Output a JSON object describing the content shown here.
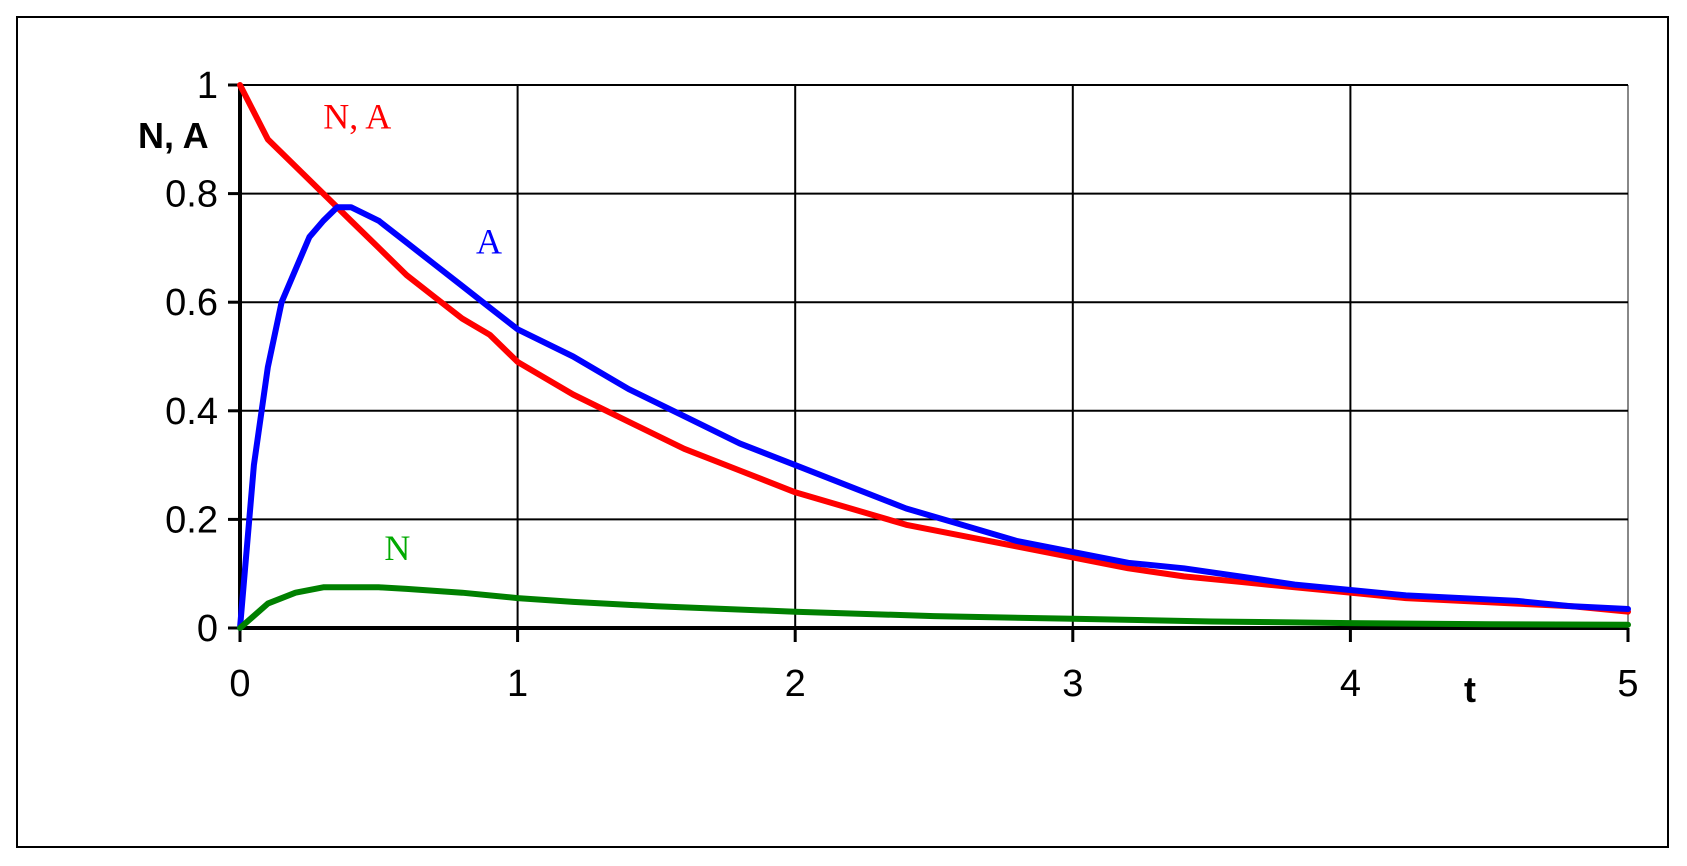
{
  "chart_data": {
    "type": "line",
    "ylabel": "N, A",
    "xlabel": "t",
    "xlim": [
      0,
      5
    ],
    "ylim": [
      0,
      1
    ],
    "x_ticks": [
      "0",
      "1",
      "2",
      "3",
      "4",
      "5"
    ],
    "y_ticks": [
      "0",
      "0.2",
      "0.4",
      "0.6",
      "0.8",
      "1"
    ],
    "grid": true,
    "series": [
      {
        "name": "N, A",
        "color": "#ff0000",
        "x": [
          0,
          0.1,
          0.2,
          0.3,
          0.4,
          0.5,
          0.6,
          0.7,
          0.8,
          0.9,
          1.0,
          1.2,
          1.4,
          1.6,
          1.8,
          2.0,
          2.2,
          2.4,
          2.6,
          2.8,
          3.0,
          3.2,
          3.4,
          3.6,
          3.8,
          4.0,
          4.2,
          4.4,
          4.6,
          4.8,
          5.0
        ],
        "y": [
          1.0,
          0.9,
          0.85,
          0.8,
          0.75,
          0.7,
          0.65,
          0.61,
          0.57,
          0.54,
          0.49,
          0.43,
          0.38,
          0.33,
          0.29,
          0.25,
          0.22,
          0.19,
          0.17,
          0.15,
          0.13,
          0.11,
          0.095,
          0.085,
          0.075,
          0.065,
          0.055,
          0.05,
          0.045,
          0.04,
          0.03
        ]
      },
      {
        "name": "A",
        "color": "#0000ff",
        "x": [
          0,
          0.05,
          0.1,
          0.15,
          0.2,
          0.25,
          0.3,
          0.35,
          0.4,
          0.5,
          0.6,
          0.7,
          0.8,
          0.9,
          1.0,
          1.2,
          1.4,
          1.6,
          1.8,
          2.0,
          2.2,
          2.4,
          2.6,
          2.8,
          3.0,
          3.2,
          3.4,
          3.6,
          3.8,
          4.0,
          4.2,
          4.4,
          4.6,
          4.8,
          5.0
        ],
        "y": [
          0.0,
          0.3,
          0.48,
          0.6,
          0.66,
          0.72,
          0.75,
          0.775,
          0.775,
          0.75,
          0.71,
          0.67,
          0.63,
          0.59,
          0.55,
          0.5,
          0.44,
          0.39,
          0.34,
          0.3,
          0.26,
          0.22,
          0.19,
          0.16,
          0.14,
          0.12,
          0.11,
          0.095,
          0.08,
          0.07,
          0.06,
          0.055,
          0.05,
          0.04,
          0.035
        ]
      },
      {
        "name": "N",
        "color": "#008000",
        "x": [
          0,
          0.1,
          0.2,
          0.3,
          0.4,
          0.5,
          0.6,
          0.8,
          1.0,
          1.2,
          1.5,
          2.0,
          2.5,
          3.0,
          3.5,
          4.0,
          4.5,
          5.0
        ],
        "y": [
          0.0,
          0.045,
          0.065,
          0.075,
          0.075,
          0.075,
          0.072,
          0.065,
          0.055,
          0.048,
          0.04,
          0.03,
          0.022,
          0.017,
          0.012,
          0.009,
          0.007,
          0.006
        ]
      }
    ],
    "series_labels": [
      {
        "text": "N, A",
        "color": "#ff0000",
        "x": 0.3,
        "y": 0.92
      },
      {
        "text": "A",
        "color": "#0000ff",
        "x": 0.85,
        "y": 0.69
      },
      {
        "text": "N",
        "color": "#00aa00",
        "x": 0.52,
        "y": 0.125
      }
    ]
  }
}
